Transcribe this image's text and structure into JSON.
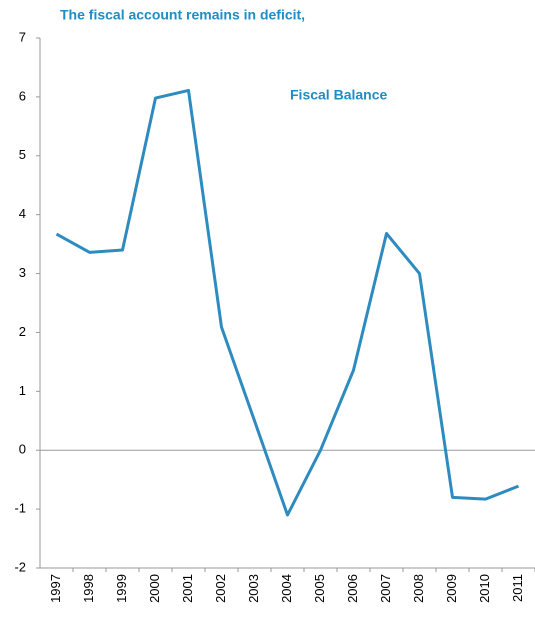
{
  "chart_data": {
    "type": "line",
    "title": "The fiscal account remains in deficit,",
    "annotation": "Fiscal Balance",
    "categories": [
      "1997",
      "1998",
      "1999",
      "2000",
      "2001",
      "2002",
      "2003",
      "2004",
      "2005",
      "2006",
      "2007",
      "2008",
      "2009",
      "2010",
      "2011"
    ],
    "series": [
      {
        "name": "Fiscal Balance",
        "color": "#2e8bc0",
        "values": [
          3.67,
          3.36,
          3.4,
          5.98,
          6.11,
          2.09,
          0.5,
          -1.1,
          0.0,
          1.36,
          3.68,
          3.0,
          -0.8,
          -0.83,
          -0.61
        ]
      }
    ],
    "ylim": [
      -2,
      7
    ],
    "yticks": [
      -2,
      -1,
      0,
      1,
      2,
      3,
      4,
      5,
      6,
      7
    ],
    "grid": false
  }
}
